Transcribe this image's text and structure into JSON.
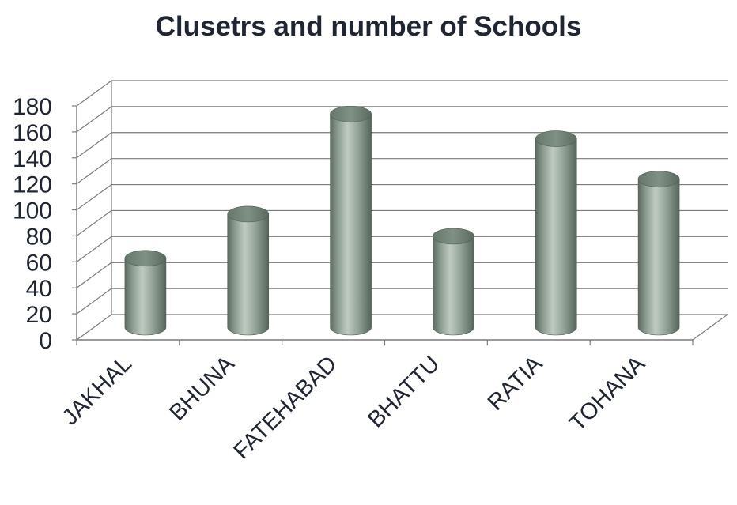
{
  "chart_data": {
    "type": "bar",
    "style": "3d-cylinder",
    "title": "Clusetrs and number of Schools",
    "categories": [
      "JAKHAL",
      "BHUNA",
      "FATEHABAD",
      "BHATTU",
      "RATIA",
      "TOHANA"
    ],
    "values": [
      53,
      87,
      164,
      70,
      145,
      114
    ],
    "xlabel": "",
    "ylabel": "",
    "ylim": [
      0,
      180
    ],
    "yticks": [
      0,
      20,
      40,
      60,
      80,
      100,
      120,
      140,
      160,
      180
    ],
    "grid": true,
    "legend": "none",
    "colors": {
      "bar_body": "#8f9f94",
      "bar_top": "#6f8074",
      "grid": "#7a7a7a",
      "text": "#1f2533"
    }
  }
}
